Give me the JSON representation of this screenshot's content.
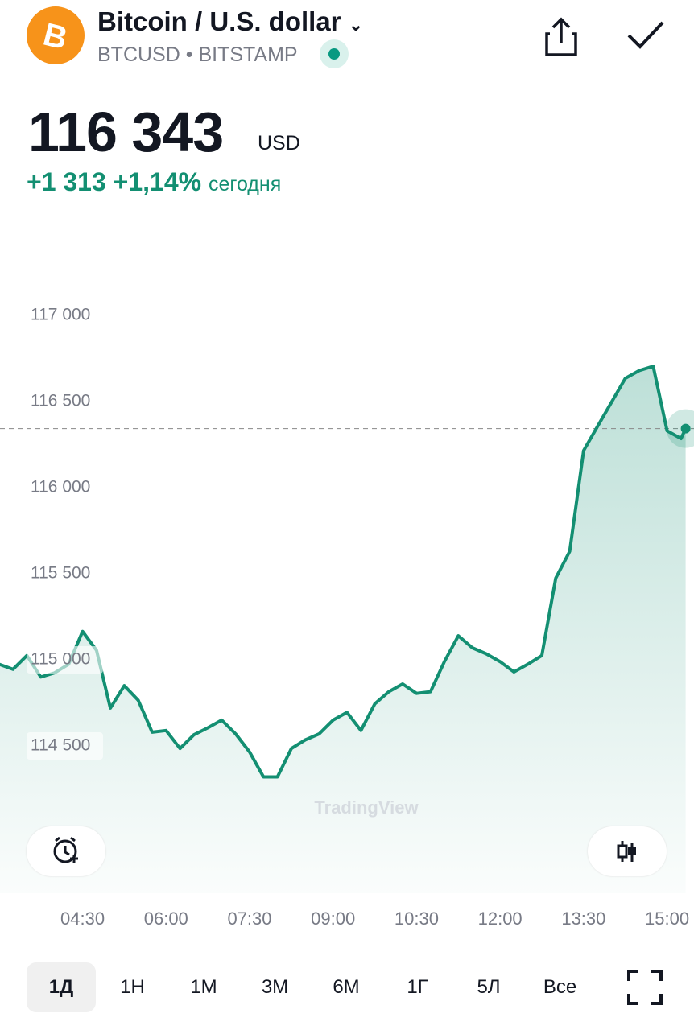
{
  "header": {
    "title": "Bitcoin / U.S. dollar",
    "symbol": "BTCUSD",
    "exchange": "BITSTAMP",
    "price": "116 343",
    "currency": "USD",
    "change": "+1 313",
    "change_pct": "+1,14%",
    "change_period": "сегодня"
  },
  "chart_data": {
    "type": "line",
    "color": "#138f72",
    "watermark": "TradingView",
    "x": [
      "03:00",
      "03:15",
      "03:30",
      "03:45",
      "04:00",
      "04:15",
      "04:30",
      "04:45",
      "05:00",
      "05:15",
      "05:30",
      "05:45",
      "06:00",
      "06:15",
      "06:30",
      "06:45",
      "07:00",
      "07:15",
      "07:30",
      "07:45",
      "08:00",
      "08:15",
      "08:30",
      "08:45",
      "09:00",
      "09:15",
      "09:30",
      "09:45",
      "10:00",
      "10:15",
      "10:30",
      "10:45",
      "11:00",
      "11:15",
      "11:30",
      "11:45",
      "12:00",
      "12:15",
      "12:30",
      "12:45",
      "13:00",
      "13:15",
      "13:30",
      "13:45",
      "14:00",
      "14:15",
      "14:30",
      "14:45",
      "15:00",
      "15:15",
      "15:20"
    ],
    "values": [
      114975,
      114945,
      115025,
      114900,
      114925,
      114975,
      115165,
      115055,
      114720,
      114850,
      114765,
      114580,
      114590,
      114485,
      114565,
      114605,
      114650,
      114570,
      114465,
      114320,
      114320,
      114485,
      114535,
      114570,
      114650,
      114695,
      114590,
      114745,
      114815,
      114860,
      114805,
      114815,
      114990,
      115140,
      115070,
      115035,
      114990,
      114930,
      114975,
      115025,
      115475,
      115630,
      116215,
      116355,
      116495,
      116635,
      116680,
      116705,
      116330,
      116285,
      116343
    ],
    "xlim": [
      "03:01",
      "15:29"
    ],
    "xticks": [
      "04:30",
      "06:00",
      "07:30",
      "09:00",
      "10:30",
      "12:00",
      "13:30",
      "15:00"
    ],
    "ylim": [
      113645,
      117570
    ],
    "yticks": [
      {
        "value": 114500,
        "label": "114 500"
      },
      {
        "value": 115000,
        "label": "115 000"
      },
      {
        "value": 115500,
        "label": "115 500"
      },
      {
        "value": 116000,
        "label": "116 000"
      },
      {
        "value": 116500,
        "label": "116 500"
      },
      {
        "value": 117000,
        "label": "117 000"
      }
    ]
  },
  "ranges": [
    "1Д",
    "1Н",
    "1М",
    "3М",
    "6М",
    "1Г",
    "5Л",
    "Все"
  ]
}
